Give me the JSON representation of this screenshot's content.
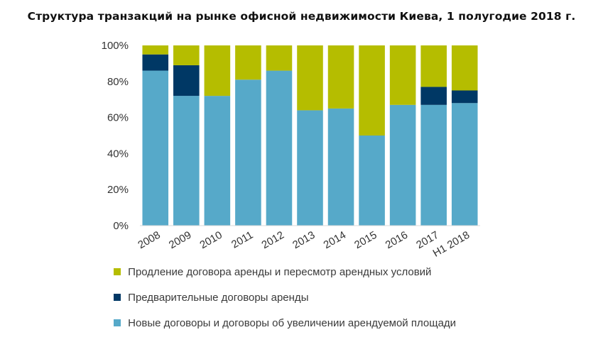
{
  "title": "Структура транзакций на рынке офисной недвижимости Киева, 1 полугодие 2018 г.",
  "colors": {
    "renewal": "#b5bd00",
    "prelease": "#003865",
    "new": "#56a9c9",
    "axis_text": "#333333"
  },
  "legend": [
    {
      "label": "Продление договора  аренды и пересмотр арендных условий",
      "color": "#b5bd00"
    },
    {
      "label": "Предварительные договоры аренды",
      "color": "#003865"
    },
    {
      "label": "Новые договоры и договоры об увеличении арендуемой площади",
      "color": "#56a9c9"
    }
  ],
  "chart_data": {
    "type": "bar",
    "stacked": true,
    "categories": [
      "2008",
      "2009",
      "2010",
      "2011",
      "2012",
      "2013",
      "2014",
      "2015",
      "2016",
      "2017",
      "H1 2018"
    ],
    "series": [
      {
        "name": "Новые договоры и договоры об увеличении арендуемой площади",
        "color": "#56a9c9",
        "values": [
          86,
          72,
          72,
          81,
          86,
          64,
          65,
          50,
          67,
          67,
          68
        ]
      },
      {
        "name": "Предварительные договоры аренды",
        "color": "#003865",
        "values": [
          9,
          17,
          0,
          0,
          0,
          0,
          0,
          0,
          0,
          10,
          7
        ]
      },
      {
        "name": "Продление договора  аренды и пересмотр арендных условий",
        "color": "#b5bd00",
        "values": [
          5,
          11,
          28,
          19,
          14,
          36,
          35,
          50,
          33,
          23,
          25
        ]
      }
    ],
    "yticks": [
      "0%",
      "20%",
      "40%",
      "60%",
      "80%",
      "100%"
    ],
    "ylim": [
      0,
      100
    ],
    "grid": false,
    "legend_position": "bottom",
    "xlabel": "",
    "ylabel": ""
  }
}
